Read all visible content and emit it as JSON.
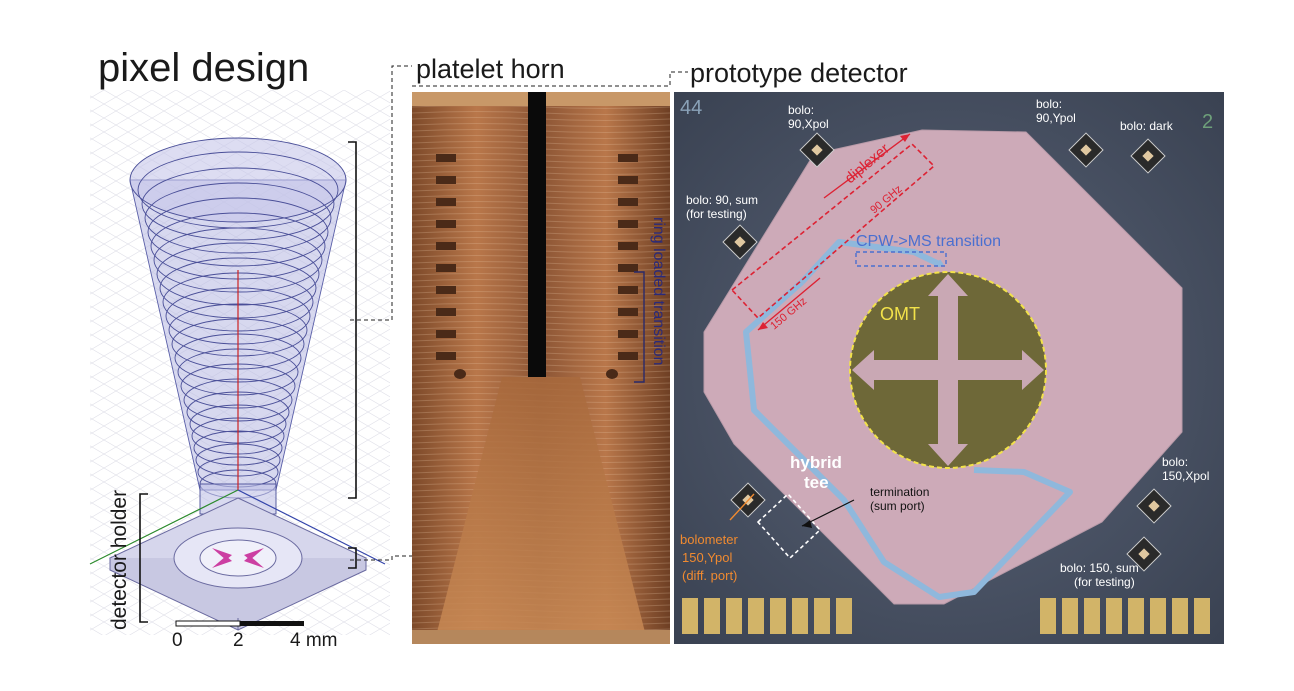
{
  "titles": {
    "pixel": "pixel design",
    "horn": "platelet horn",
    "proto": "prototype detector"
  },
  "pixel": {
    "holder_label": "detector holder",
    "scale_ticks": [
      "0",
      "2",
      "4 mm"
    ]
  },
  "horn": {
    "ring_label": "ring loaded transition"
  },
  "detector": {
    "chip_number": "44",
    "chip_mark": "2",
    "labels": {
      "bolo90x_1": "bolo:",
      "bolo90x_2": "90,Xpol",
      "bolo90y_1": "bolo:",
      "bolo90y_2": "90,Ypol",
      "bolodark": "bolo: dark",
      "bolo90sum_1": "bolo: 90, sum",
      "bolo90sum_2": "(for testing)",
      "diplexer": "diplexer",
      "ghz90": "90 GHz",
      "ghz150": "150 GHz",
      "cpw": "CPW->MS transition",
      "omt": "OMT",
      "hybrid_1": "hybrid",
      "hybrid_2": "tee",
      "term_1": "termination",
      "term_2": "(sum port)",
      "bolo150x_1": "bolo:",
      "bolo150x_2": "150,Xpol",
      "bolometer_1": "bolometer",
      "bolometer_2": "150,Ypol",
      "bolometer_3": "(diff. port)",
      "bolo150sum_1": "bolo: 150, sum",
      "bolo150sum_2": "(for testing)"
    }
  },
  "colors": {
    "chip_pink": "#cdaab8",
    "substrate": "#4a5566",
    "cpw_blue": "#4a6fd0",
    "diplexer_red": "#dd2233",
    "omt_yellow": "#f2e24a",
    "bolometer_orange": "#f08a30",
    "horn_copper": "#a9683a",
    "pixel_outline": "#3a3f8a"
  }
}
